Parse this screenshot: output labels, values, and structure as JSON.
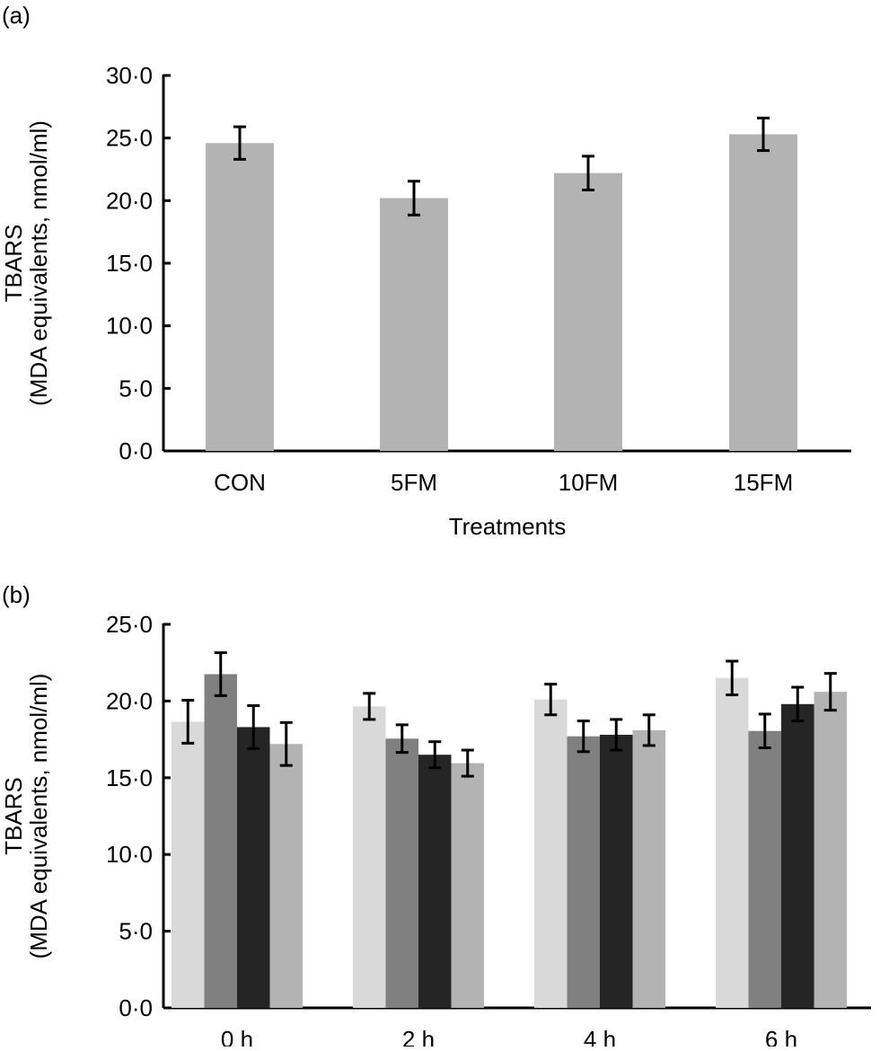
{
  "chart_data": [
    {
      "panel_label": "(a)",
      "type": "bar",
      "ylabel_line1": "TBARS",
      "ylabel_line2": "(MDA equivalents, nmol/ml)",
      "xlabel": "Treatments",
      "categories": [
        "CON",
        "5FM",
        "10FM",
        "15FM"
      ],
      "values": [
        24.6,
        20.2,
        22.2,
        25.3
      ],
      "errors": [
        1.3,
        1.35,
        1.35,
        1.3
      ],
      "ylim": [
        0,
        30
      ],
      "yticks": [
        0,
        5,
        10,
        15,
        20,
        25,
        30
      ],
      "ytick_labels": [
        "0·0",
        "5·0",
        "10·0",
        "15·0",
        "20·0",
        "25·0",
        "30·0"
      ],
      "bar_color": "#b3b3b3",
      "grid": false
    },
    {
      "panel_label": "(b)",
      "type": "bar",
      "ylabel_line1": "TBARS",
      "ylabel_line2": "(MDA equivalents, nmol/ml)",
      "categories": [
        "0 h",
        "2 h",
        "4 h",
        "6 h"
      ],
      "series": [
        {
          "color": "#d9d9d9",
          "values": [
            18.65,
            19.65,
            20.1,
            21.5
          ],
          "errors": [
            1.4,
            0.85,
            1.0,
            1.1
          ]
        },
        {
          "color": "#808080",
          "values": [
            21.75,
            17.55,
            17.7,
            18.05
          ],
          "errors": [
            1.4,
            0.9,
            1.0,
            1.1
          ]
        },
        {
          "color": "#252525",
          "values": [
            18.3,
            16.5,
            17.8,
            19.8
          ],
          "errors": [
            1.4,
            0.85,
            1.0,
            1.1
          ]
        },
        {
          "color": "#b3b3b3",
          "values": [
            17.2,
            15.95,
            18.1,
            20.6
          ],
          "errors": [
            1.4,
            0.85,
            1.0,
            1.2
          ]
        }
      ],
      "ylim": [
        0,
        25
      ],
      "yticks": [
        0,
        5,
        10,
        15,
        20,
        25
      ],
      "ytick_labels": [
        "0·0",
        "5·0",
        "10·0",
        "15·0",
        "20·0",
        "25·0"
      ],
      "grid": false
    }
  ]
}
